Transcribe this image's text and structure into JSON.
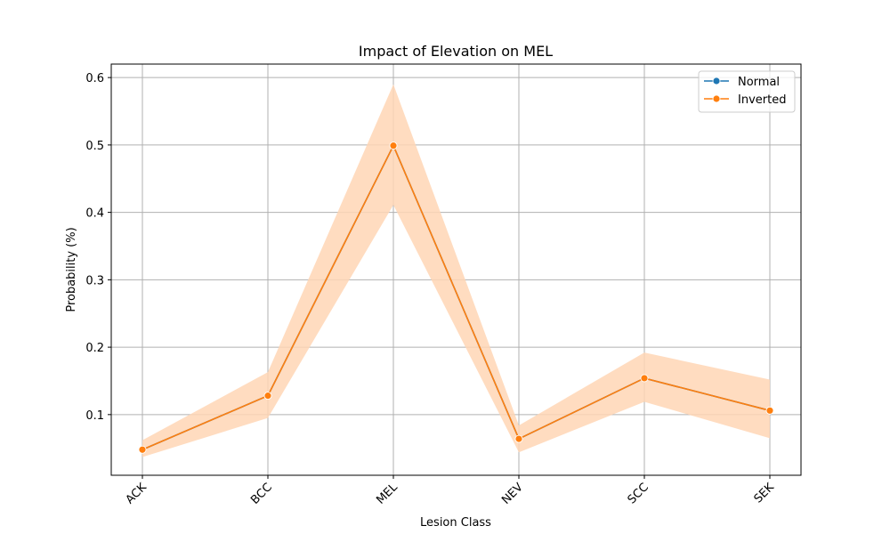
{
  "chart_data": {
    "type": "line",
    "title": "Impact of Elevation on MEL",
    "xlabel": "Lesion Class",
    "ylabel": "Probability (%)",
    "categories": [
      "ACK",
      "BCC",
      "MEL",
      "NEV",
      "SCC",
      "SEK"
    ],
    "ylim": [
      0.01,
      0.62
    ],
    "yticks": [
      0.1,
      0.2,
      0.3,
      0.4,
      0.5,
      0.6
    ],
    "ytick_labels": [
      "0.1",
      "0.2",
      "0.3",
      "0.4",
      "0.5",
      "0.6"
    ],
    "grid": true,
    "legend_position": "top-right",
    "legend": [
      {
        "name": "Normal",
        "color": "#1f77b4"
      },
      {
        "name": "Inverted",
        "color": "#ff7f0e"
      }
    ],
    "series": [
      {
        "name": "Normal",
        "color": "#1f77b4",
        "values": [
          0.048,
          0.128,
          0.499,
          0.064,
          0.154,
          0.106
        ],
        "ci_low": [
          0.037,
          0.095,
          0.411,
          0.044,
          0.119,
          0.065
        ],
        "ci_high": [
          0.062,
          0.163,
          0.59,
          0.084,
          0.192,
          0.152
        ]
      },
      {
        "name": "Inverted",
        "color": "#ff7f0e",
        "band_color": "#ffd6b5",
        "values": [
          0.048,
          0.128,
          0.499,
          0.064,
          0.154,
          0.106
        ],
        "ci_low": [
          0.037,
          0.095,
          0.411,
          0.044,
          0.119,
          0.065
        ],
        "ci_high": [
          0.062,
          0.163,
          0.59,
          0.084,
          0.192,
          0.152
        ]
      }
    ]
  }
}
